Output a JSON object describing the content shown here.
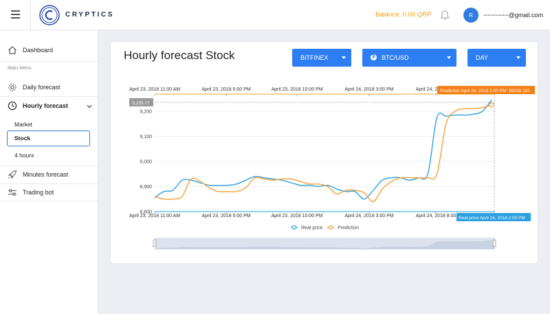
{
  "header": {
    "brand": "CRYPTICS",
    "balance": "Balance: 0.00 QRP",
    "avatar_initial": "R",
    "email": "~~~~~~~@gmail.com"
  },
  "sidebar": {
    "dashboard": "Dashboard",
    "section_label": "Main Menu",
    "daily_forecast": "Daily forecast",
    "hourly_forecast": "Hourly forecast",
    "sub_items": [
      "Market",
      "Stock",
      "4 hours"
    ],
    "minutes_forecast": "Minutes forecast",
    "trading_bot": "Trading bot"
  },
  "main": {
    "title": "Hourly forecast Stock",
    "exchange": "BITFINEX",
    "pair": "BTC/USD",
    "period": "DAY"
  },
  "colors": {
    "accent": "#2d7ef2",
    "real_price": "#2b9fe0",
    "prediction": "#f7a030",
    "balance": "#f39c12"
  },
  "chart_data": {
    "type": "line",
    "x_ticks": [
      "April 23, 2018 11:00 AM",
      "April 23, 2018 5:00 PM",
      "April 23, 2018 10:00 PM",
      "April 24, 2018 3:00 PM",
      "April 24, 2018 8:00"
    ],
    "ylim": [
      8800,
      9260
    ],
    "y_ticks": [
      "8,800",
      "8,900",
      "9,000",
      "9,100",
      "9,200"
    ],
    "crosshair_value_label": "9,235.77",
    "prediction_tooltip": "Prediction  April 24, 2018 2:00 PM: $9238.182",
    "real_tooltip": "Real price  April 24, 2018 2:00 PM",
    "legend": "bottom",
    "series": [
      {
        "name": "Real price",
        "color": "#2b9fe0",
        "values": [
          8855,
          8880,
          8885,
          8925,
          8925,
          8915,
          8905,
          8905,
          8905,
          8910,
          8925,
          8940,
          8935,
          8930,
          8925,
          8915,
          8905,
          8905,
          8900,
          8905,
          8890,
          8880,
          8880,
          8850,
          8885,
          8925,
          8935,
          8935,
          8925,
          8935,
          8950,
          9175,
          9180,
          9185,
          9185,
          9188,
          9200,
          9245
        ]
      },
      {
        "name": "Prediction",
        "color": "#f7a030",
        "values": [
          8860,
          8850,
          8850,
          8860,
          8930,
          8920,
          8895,
          8880,
          8880,
          8880,
          8895,
          8935,
          8930,
          8925,
          8930,
          8930,
          8920,
          8910,
          8910,
          8900,
          8870,
          8885,
          8885,
          8875,
          8840,
          8890,
          8920,
          8935,
          8935,
          8935,
          8935,
          8950,
          9150,
          9200,
          9210,
          9210,
          9215,
          9225
        ]
      }
    ]
  }
}
